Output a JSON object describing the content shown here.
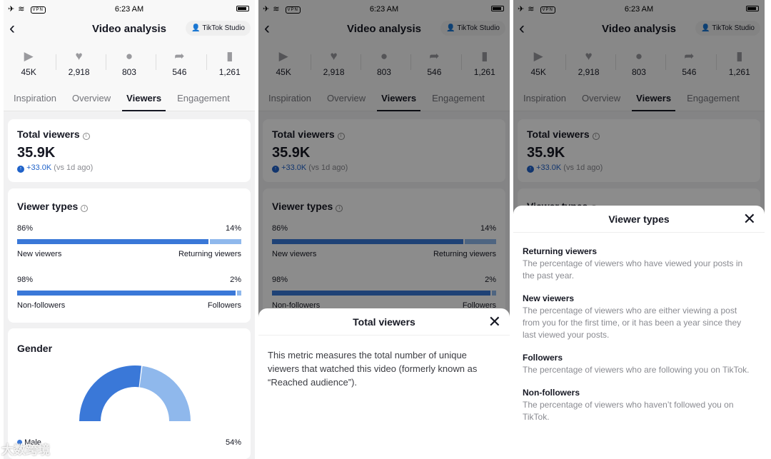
{
  "status": {
    "time": "6:23 AM",
    "vpn": "VPN"
  },
  "header": {
    "back": "<",
    "title": "Video analysis",
    "studio": "TikTok Studio"
  },
  "stats": [
    {
      "icon": "play-icon",
      "glyph": "▶",
      "value": "45K"
    },
    {
      "icon": "heart-icon",
      "glyph": "♥",
      "value": "2,918"
    },
    {
      "icon": "comment-icon",
      "glyph": "●",
      "value": "803"
    },
    {
      "icon": "share-icon",
      "glyph": "➦",
      "value": "546"
    },
    {
      "icon": "bookmark-icon",
      "glyph": "▮",
      "value": "1,261"
    }
  ],
  "tabs": [
    "Inspiration",
    "Overview",
    "Viewers",
    "Engagement"
  ],
  "total": {
    "title": "Total viewers",
    "value": "35.9K",
    "delta": "+33.0K",
    "vs": "(vs 1d ago)"
  },
  "types": {
    "title": "Viewer types",
    "row1": {
      "left_pct": "86%",
      "right_pct": "14%",
      "left_label": "New viewers",
      "right_label": "Returning viewers",
      "fill": 0.86
    },
    "row2": {
      "left_pct": "98%",
      "right_pct": "2%",
      "left_label": "Non-followers",
      "right_label": "Followers",
      "fill": 0.98
    }
  },
  "gender": {
    "title": "Gender",
    "male_label": "Male",
    "male_pct": "54%",
    "male_share": 0.54,
    "colors": {
      "male": "#3a78d8",
      "female": "#8fb8ec"
    }
  },
  "sheet_total": {
    "title": "Total viewers",
    "text": "This metric measures the total number of unique viewers that watched this video (formerly known as “Reached audience”)."
  },
  "sheet_types": {
    "title": "Viewer types",
    "items": [
      {
        "term": "Returning viewers",
        "desc": "The percentage of viewers who have viewed your posts in the past year."
      },
      {
        "term": "New viewers",
        "desc": "The percentage of viewers who are either viewing a post from you for the first time, or it has been a year since they last viewed your posts."
      },
      {
        "term": "Followers",
        "desc": "The percentage of viewers who are following you on TikTok."
      },
      {
        "term": "Non-followers",
        "desc": "The percentage of viewers who haven’t followed you on TikTok."
      }
    ]
  },
  "watermark": "大数跨境"
}
